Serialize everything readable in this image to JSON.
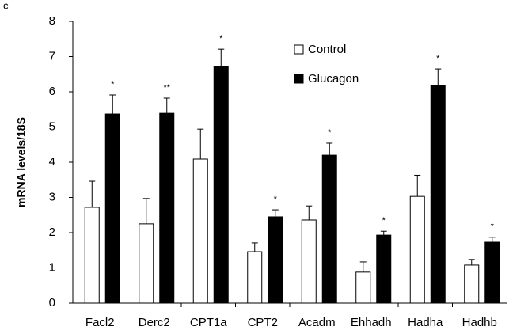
{
  "chart_data": {
    "type": "bar",
    "panel_label": "c",
    "ylabel": "mRNA levels/18S",
    "categories": [
      "Facl2",
      "Derc2",
      "CPT1a",
      "CPT2",
      "Acadm",
      "Ehhadh",
      "Hadha",
      "Hadhb"
    ],
    "series": [
      {
        "name": "Control",
        "color": "#ffffff",
        "values": [
          2.72,
          2.25,
          4.09,
          1.46,
          2.36,
          0.88,
          3.03,
          1.08
        ],
        "errors": [
          0.74,
          0.72,
          0.85,
          0.25,
          0.4,
          0.29,
          0.6,
          0.16
        ]
      },
      {
        "name": "Glucagon",
        "color": "#000000",
        "values": [
          5.37,
          5.39,
          6.72,
          2.45,
          4.2,
          1.93,
          6.18,
          1.73
        ],
        "errors": [
          0.54,
          0.43,
          0.49,
          0.2,
          0.34,
          0.11,
          0.47,
          0.14
        ]
      }
    ],
    "annotations": [
      "*",
      "**",
      "*",
      "*",
      "*",
      "*",
      "*",
      "*"
    ],
    "ylim": [
      0,
      8
    ],
    "yticks": [
      0,
      1,
      2,
      3,
      4,
      5,
      6,
      7,
      8
    ],
    "grid": false
  }
}
